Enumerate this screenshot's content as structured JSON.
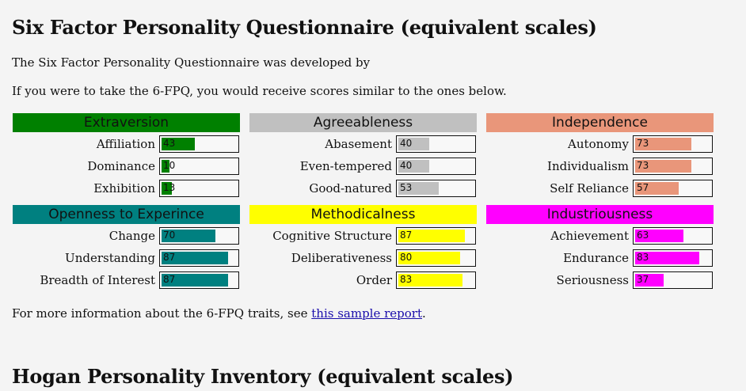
{
  "section1": {
    "title": "Six Factor Personality Questionnaire (equivalent scales)",
    "intro": "The Six Factor Personality Questionnaire was developed by",
    "scores_note": "If you were to take the 6-FPQ, you would receive scores similar to the ones below.",
    "more_info_prefix": "For more information about the 6-FPQ traits, see ",
    "more_info_link": "this sample report",
    "more_info_suffix": "."
  },
  "section2": {
    "title": "Hogan Personality Inventory (equivalent scales)"
  },
  "factors": [
    {
      "name": "Extraversion",
      "color": "#008000",
      "traits": [
        {
          "label": "Affiliation",
          "value": 43
        },
        {
          "label": "Dominance",
          "value": 10
        },
        {
          "label": "Exhibition",
          "value": 13
        }
      ]
    },
    {
      "name": "Agreeableness",
      "color": "#c0c0c0",
      "traits": [
        {
          "label": "Abasement",
          "value": 40
        },
        {
          "label": "Even-tempered",
          "value": 40
        },
        {
          "label": "Good-natured",
          "value": 53
        }
      ]
    },
    {
      "name": "Independence",
      "color": "#e9967a",
      "traits": [
        {
          "label": "Autonomy",
          "value": 73
        },
        {
          "label": "Individualism",
          "value": 73
        },
        {
          "label": "Self Reliance",
          "value": 57
        }
      ]
    },
    {
      "name": "Openness to Experince",
      "color": "#008080",
      "traits": [
        {
          "label": "Change",
          "value": 70
        },
        {
          "label": "Understanding",
          "value": 87
        },
        {
          "label": "Breadth of Interest",
          "value": 87
        }
      ]
    },
    {
      "name": "Methodicalness",
      "color": "#ffff00",
      "traits": [
        {
          "label": "Cognitive Structure",
          "value": 87
        },
        {
          "label": "Deliberativeness",
          "value": 80
        },
        {
          "label": "Order",
          "value": 83
        }
      ]
    },
    {
      "name": "Industriousness",
      "color": "#ff00ff",
      "traits": [
        {
          "label": "Achievement",
          "value": 63
        },
        {
          "label": "Endurance",
          "value": 83
        },
        {
          "label": "Seriousness",
          "value": 37
        }
      ]
    }
  ]
}
